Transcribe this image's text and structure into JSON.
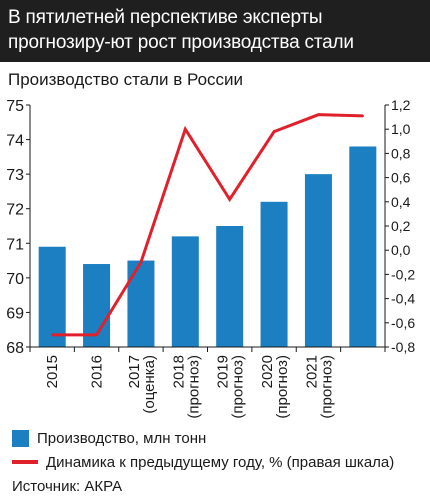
{
  "header": {
    "title": "В пятилетней перспективе эксперты прогнозиру-ют рост производства стали"
  },
  "footer": {
    "source": "Источник: АКРА"
  },
  "colors": {
    "bar": "#1b7fc1",
    "line": "#e0212b",
    "header_bg": "#1f1f1f"
  },
  "chart_data": {
    "type": "bar",
    "title": "Производство стали в России",
    "categories": [
      "2015",
      "2016",
      "2017\n(оценка)",
      "2018\n(прогноз)",
      "2019\n(прогноз)",
      "2020\n(прогноз)",
      "2021\n(прогноз)",
      ""
    ],
    "series": [
      {
        "name": "Производство, млн тонн",
        "type": "bar",
        "axis": "left",
        "values": [
          70.9,
          70.4,
          70.5,
          71.2,
          71.5,
          72.2,
          73.0,
          73.8
        ]
      },
      {
        "name": "Динамика к предыдущему году, % (правая шкала)",
        "type": "line",
        "axis": "right",
        "values": [
          -0.7,
          -0.7,
          -0.1,
          1.0,
          0.42,
          0.98,
          1.12,
          1.11
        ]
      }
    ],
    "ylim_left": [
      68,
      75
    ],
    "yticks_left": [
      "68",
      "69",
      "70",
      "71",
      "72",
      "73",
      "74",
      "75"
    ],
    "ylim_right": [
      -0.8,
      1.2
    ],
    "yticks_right": [
      "-0,8",
      "-0,6",
      "-0,4",
      "-0,2",
      "0,0",
      "0,2",
      "0,4",
      "0,6",
      "0,8",
      "1,0",
      "1,2"
    ],
    "grid": false,
    "legend_position": "bottom"
  }
}
